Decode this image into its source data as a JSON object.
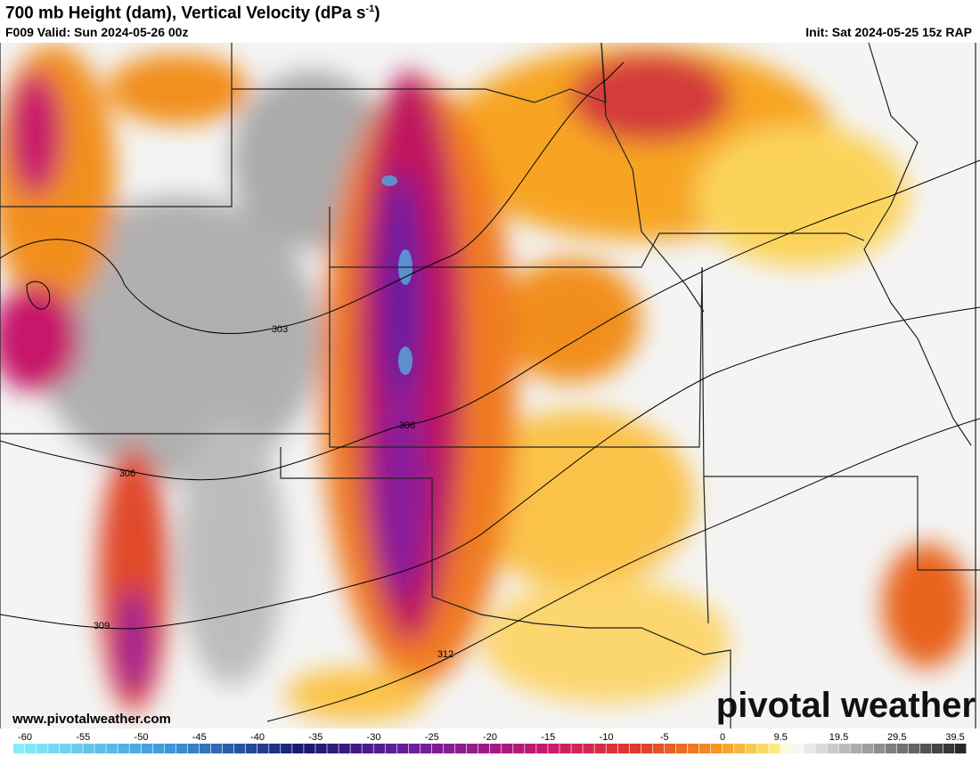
{
  "header": {
    "title": {
      "text": "700 mb Height (dam), Vertical Velocity (dPa s",
      "superscript": "-1",
      "close": ")"
    },
    "valid": "F009 Valid: Sun 2024-05-26 00z",
    "init": "Init: Sat 2024-05-25 15z RAP"
  },
  "map": {
    "contour_labels": [
      "303",
      "306",
      "306",
      "309",
      "312"
    ]
  },
  "colorbar": {
    "labels": [
      -60,
      -55,
      -50,
      -45,
      -40,
      -35,
      -30,
      -25,
      -20,
      -15,
      -10,
      -5,
      0,
      9.5,
      19.5,
      29.5,
      39.5
    ]
  },
  "footer": {
    "website": "www.pivotalweather.com",
    "logo": "pivotal weather"
  }
}
